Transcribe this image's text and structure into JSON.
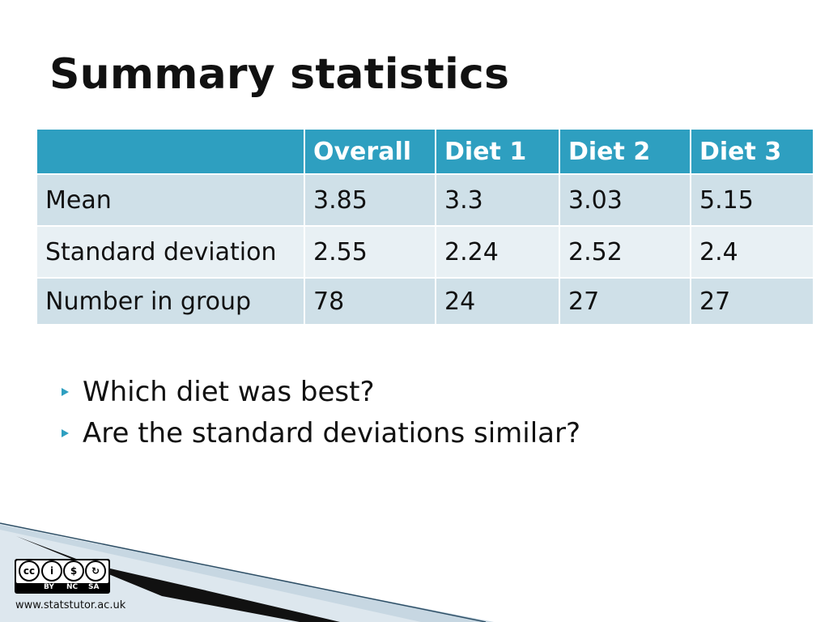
{
  "slide": {
    "title": "Summary statistics"
  },
  "table": {
    "headers": [
      "",
      "Overall",
      "Diet 1",
      "Diet 2",
      "Diet 3"
    ],
    "rows": [
      {
        "label": "Mean",
        "values": [
          "3.85",
          "3.3",
          "3.03",
          "5.15"
        ]
      },
      {
        "label": "Standard deviation",
        "values": [
          "2.55",
          "2.24",
          "2.52",
          "2.4"
        ]
      },
      {
        "label": "Number in group",
        "values": [
          "78",
          "24",
          "27",
          "27"
        ]
      }
    ]
  },
  "bullets": [
    "Which diet was best?",
    "Are the standard deviations similar?"
  ],
  "license": {
    "badge_labels": [
      "BY",
      "NC",
      "SA"
    ],
    "website": "www.statstutor.ac.uk"
  },
  "colors": {
    "header_bg": "#2e9fc0",
    "row_odd_bg": "#cfe0e8",
    "row_even_bg": "#e8f0f4",
    "bullet_arrow": "#2e9fc0"
  }
}
